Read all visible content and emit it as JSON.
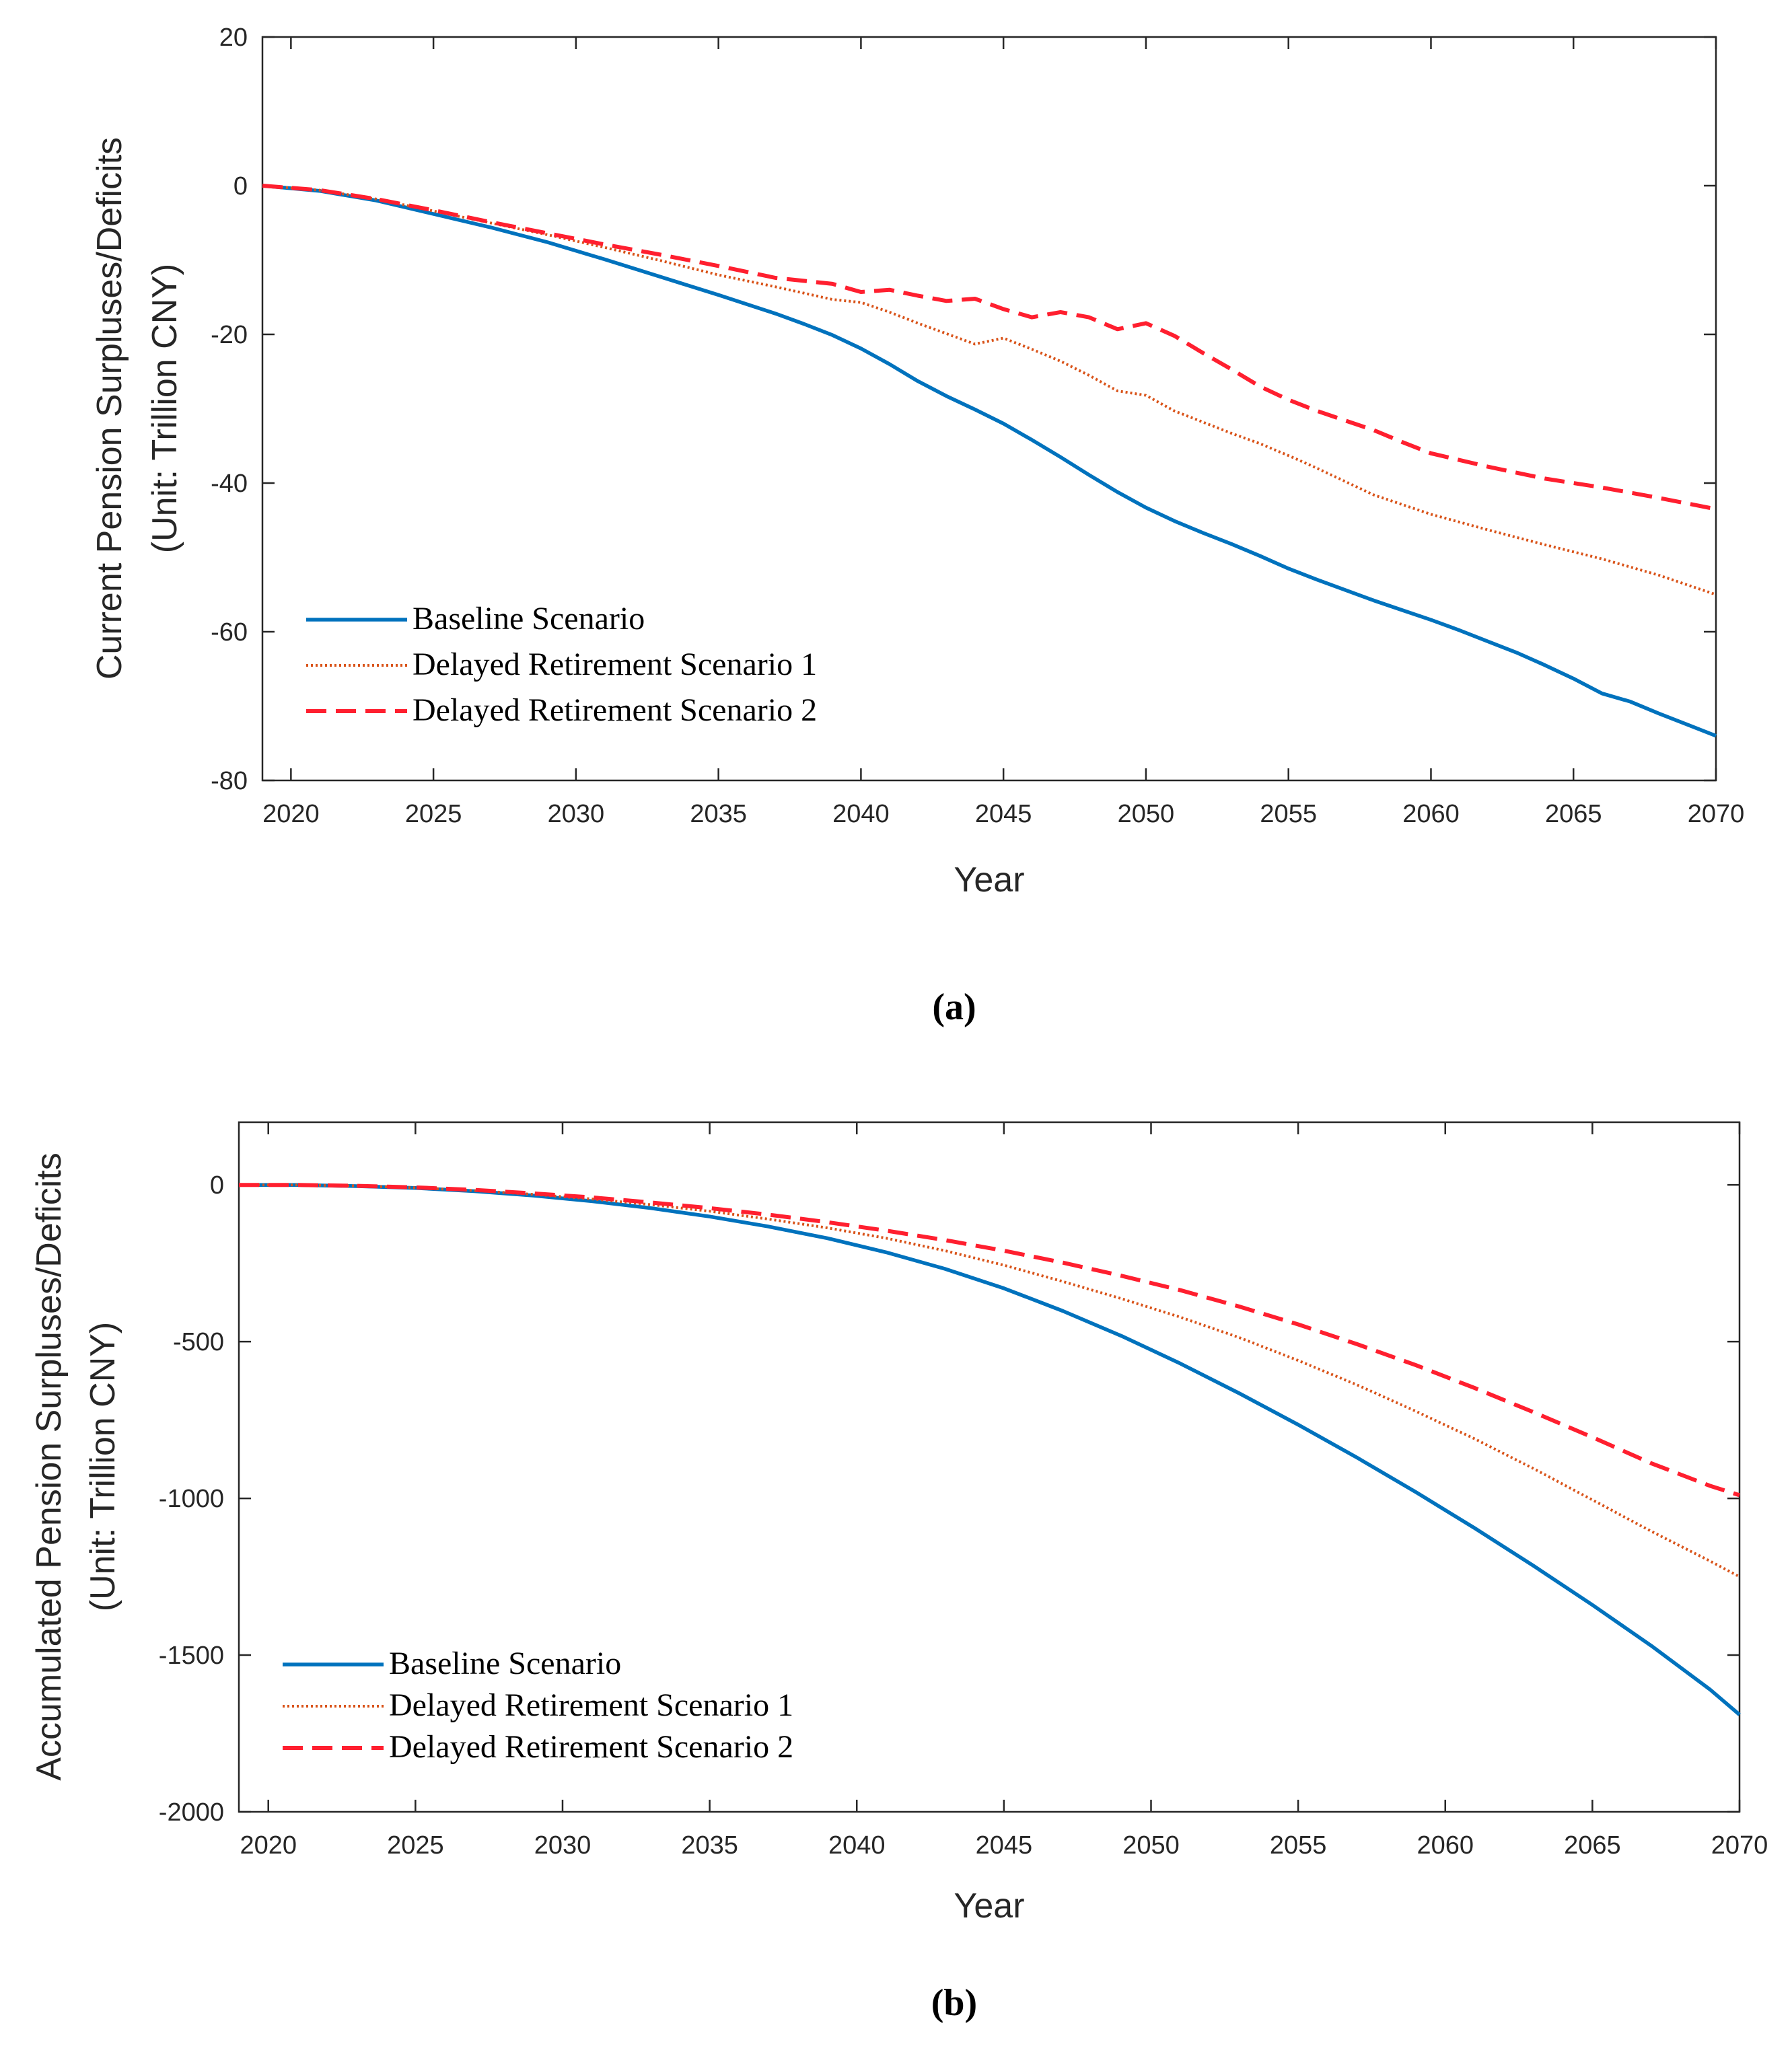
{
  "colors": {
    "baseline": "#0072BD",
    "delayed1": "#D95319",
    "delayed2": "#FF1F2F",
    "axis": "#262626"
  },
  "chart_data": [
    {
      "id": "a",
      "type": "line",
      "caption": "(a)",
      "xlabel": "Year",
      "ylabel_line1": "Current Pension Surpluses/Deficits",
      "ylabel_line2": "(Unit: Trillion CNY)",
      "xlim": [
        2019,
        2070
      ],
      "ylim": [
        -80,
        20
      ],
      "xticks": [
        2020,
        2025,
        2030,
        2035,
        2040,
        2045,
        2050,
        2055,
        2060,
        2065,
        2070
      ],
      "yticks": [
        -80,
        -60,
        -40,
        -20,
        0,
        20
      ],
      "legend_position": "bottom-left",
      "series": [
        {
          "name": "Baseline Scenario",
          "style": "solid",
          "color_key": "baseline",
          "x": [
            2019,
            2021,
            2023,
            2025,
            2027,
            2029,
            2031,
            2033,
            2035,
            2037,
            2038,
            2039,
            2040,
            2041,
            2042,
            2043,
            2044,
            2045,
            2046,
            2047,
            2048,
            2049,
            2050,
            2051,
            2052,
            2053,
            2054,
            2055,
            2056,
            2057,
            2058,
            2059,
            2060,
            2061,
            2062,
            2063,
            2064,
            2065,
            2066,
            2067,
            2068,
            2069,
            2070
          ],
          "y": [
            0,
            -0.7,
            -2,
            -3.8,
            -5.6,
            -7.6,
            -9.9,
            -12.3,
            -14.7,
            -17.2,
            -18.6,
            -20.1,
            -21.9,
            -24,
            -26.3,
            -28.3,
            -30.1,
            -32,
            -34.2,
            -36.5,
            -38.9,
            -41.2,
            -43.3,
            -45.1,
            -46.7,
            -48.2,
            -49.8,
            -51.5,
            -53,
            -54.4,
            -55.8,
            -57.1,
            -58.4,
            -59.8,
            -61.3,
            -62.8,
            -64.5,
            -66.3,
            -68.3,
            -69.4,
            -71,
            -72.5,
            -74
          ]
        },
        {
          "name": "Delayed Retirement Scenario 1",
          "style": "dotted",
          "color_key": "delayed1",
          "x": [
            2019,
            2021,
            2023,
            2025,
            2027,
            2029,
            2031,
            2033,
            2035,
            2037,
            2039,
            2040,
            2041,
            2042,
            2043,
            2044,
            2045,
            2046,
            2047,
            2048,
            2049,
            2050,
            2051,
            2052,
            2053,
            2054,
            2055,
            2056,
            2057,
            2058,
            2060,
            2062,
            2064,
            2066,
            2068,
            2070
          ],
          "y": [
            0,
            -0.6,
            -1.8,
            -3.4,
            -5,
            -6.6,
            -8.3,
            -10.1,
            -12,
            -13.6,
            -15.3,
            -15.7,
            -17,
            -18.5,
            -19.9,
            -21.3,
            -20.5,
            -22,
            -23.6,
            -25.5,
            -27.6,
            -28.2,
            -30.3,
            -31.8,
            -33.3,
            -34.7,
            -36.3,
            -38,
            -39.8,
            -41.6,
            -44.2,
            -46.3,
            -48.3,
            -50.2,
            -52.4,
            -55
          ]
        },
        {
          "name": "Delayed Retirement Scenario 2",
          "style": "dashed",
          "color_key": "delayed2",
          "x": [
            2019,
            2021,
            2023,
            2025,
            2027,
            2029,
            2031,
            2033,
            2035,
            2037,
            2039,
            2040,
            2041,
            2042,
            2043,
            2044,
            2045,
            2046,
            2047,
            2048,
            2049,
            2050,
            2051,
            2052,
            2053,
            2054,
            2055,
            2056,
            2057,
            2058,
            2059,
            2060,
            2062,
            2064,
            2066,
            2068,
            2070
          ],
          "y": [
            0,
            -0.6,
            -1.8,
            -3.3,
            -4.9,
            -6.4,
            -7.9,
            -9.3,
            -10.8,
            -12.4,
            -13.2,
            -14.3,
            -14,
            -14.8,
            -15.5,
            -15.2,
            -16.6,
            -17.7,
            -17,
            -17.7,
            -19.3,
            -18.5,
            -20.2,
            -22.5,
            -24.7,
            -27,
            -28.8,
            -30.3,
            -31.6,
            -32.9,
            -34.5,
            -36,
            -37.8,
            -39.4,
            -40.6,
            -42,
            -43.5
          ]
        }
      ]
    },
    {
      "id": "b",
      "type": "line",
      "caption": "(b)",
      "xlabel": "Year",
      "ylabel_line1": "Accumulated Pension Surpluses/Deficits",
      "ylabel_line2": "(Unit: Trillion CNY)",
      "xlim": [
        2019,
        2070
      ],
      "ylim": [
        -2000,
        200
      ],
      "xticks": [
        2020,
        2025,
        2030,
        2035,
        2040,
        2045,
        2050,
        2055,
        2060,
        2065,
        2070
      ],
      "yticks": [
        -2000,
        -1500,
        -1000,
        -500,
        0
      ],
      "legend_position": "bottom-left",
      "series": [
        {
          "name": "Baseline Scenario",
          "style": "solid",
          "color_key": "baseline",
          "x": [
            2019,
            2021,
            2023,
            2025,
            2027,
            2029,
            2031,
            2033,
            2035,
            2037,
            2039,
            2041,
            2043,
            2045,
            2047,
            2049,
            2051,
            2053,
            2055,
            2057,
            2059,
            2061,
            2063,
            2065,
            2067,
            2069,
            2070
          ],
          "y": [
            0,
            0,
            -4,
            -10,
            -20,
            -34,
            -52,
            -74,
            -101,
            -133,
            -170,
            -215,
            -268,
            -330,
            -402,
            -482,
            -570,
            -665,
            -765,
            -870,
            -980,
            -1095,
            -1215,
            -1340,
            -1470,
            -1610,
            -1690
          ]
        },
        {
          "name": "Delayed Retirement Scenario 1",
          "style": "dotted",
          "color_key": "delayed1",
          "x": [
            2019,
            2021,
            2023,
            2025,
            2027,
            2029,
            2031,
            2033,
            2035,
            2037,
            2039,
            2041,
            2043,
            2045,
            2047,
            2049,
            2051,
            2053,
            2055,
            2057,
            2059,
            2061,
            2063,
            2065,
            2067,
            2069,
            2070
          ],
          "y": [
            0,
            0,
            -3,
            -9,
            -18,
            -30,
            -45,
            -63,
            -84,
            -109,
            -137,
            -170,
            -210,
            -256,
            -308,
            -363,
            -422,
            -487,
            -560,
            -638,
            -722,
            -810,
            -905,
            -1005,
            -1105,
            -1200,
            -1250
          ]
        },
        {
          "name": "Delayed Retirement Scenario 2",
          "style": "dashed",
          "color_key": "delayed2",
          "x": [
            2019,
            2021,
            2023,
            2025,
            2027,
            2029,
            2031,
            2033,
            2035,
            2037,
            2039,
            2041,
            2043,
            2045,
            2047,
            2049,
            2051,
            2053,
            2055,
            2057,
            2059,
            2061,
            2063,
            2065,
            2067,
            2069,
            2070
          ],
          "y": [
            0,
            0,
            -3,
            -8,
            -16,
            -27,
            -40,
            -56,
            -74,
            -95,
            -119,
            -146,
            -176,
            -210,
            -248,
            -290,
            -336,
            -388,
            -445,
            -508,
            -575,
            -648,
            -725,
            -805,
            -888,
            -960,
            -990
          ]
        }
      ]
    }
  ]
}
